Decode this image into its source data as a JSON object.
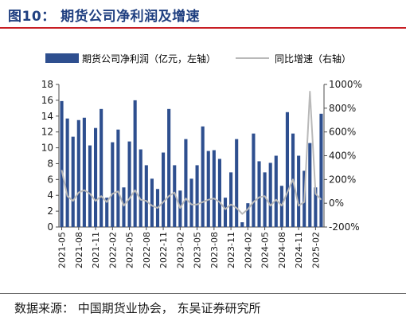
{
  "header": {
    "title": "图10： 期货公司净利润及增速"
  },
  "footer": {
    "source": "数据来源： 中国期货业协会， 东吴证券研究所"
  },
  "colors": {
    "bar": "#2e4f8f",
    "line": "#b9b9b9",
    "axis": "#4d4d4d",
    "title": "#1f3f80",
    "rule": "#c81e24"
  },
  "chart_data": {
    "type": "bar+line",
    "legend": {
      "position": "top",
      "bar_label": "期货公司净利润（亿元，左轴）",
      "line_label": "同比增速（右轴）"
    },
    "x": [
      "2021-05",
      "2021-06",
      "2021-07",
      "2021-08",
      "2021-09",
      "2021-10",
      "2021-11",
      "2021-12",
      "2022-01",
      "2022-02",
      "2022-03",
      "2022-04",
      "2022-05",
      "2022-06",
      "2022-07",
      "2022-08",
      "2022-09",
      "2022-10",
      "2022-11",
      "2022-12",
      "2023-01",
      "2023-02",
      "2023-03",
      "2023-04",
      "2023-05",
      "2023-06",
      "2023-07",
      "2023-08",
      "2023-09",
      "2023-10",
      "2023-11",
      "2023-12",
      "2024-01",
      "2024-02",
      "2024-03",
      "2024-04",
      "2024-05",
      "2024-06",
      "2024-07",
      "2024-08",
      "2024-09",
      "2024-10",
      "2024-11",
      "2024-12",
      "2025-01",
      "2025-02",
      "2025-03"
    ],
    "x_tick_labels": [
      "2021-05",
      "2021-08",
      "2021-11",
      "2022-02",
      "2022-05",
      "2022-08",
      "2022-11",
      "2023-02",
      "2023-05",
      "2023-08",
      "2023-11",
      "2024-02",
      "2024-05",
      "2024-08",
      "2024-11",
      "2025-02"
    ],
    "series": [
      {
        "name": "期货公司净利润（亿元，左轴）",
        "type": "bar",
        "axis": "left",
        "values": [
          15.9,
          13.7,
          11.4,
          13.5,
          13.8,
          10.3,
          12.5,
          14.9,
          3.7,
          10.7,
          12.3,
          5.0,
          10.8,
          16.0,
          9.8,
          7.8,
          6.1,
          4.8,
          9.4,
          14.9,
          7.8,
          4.6,
          11.1,
          6.1,
          7.8,
          12.7,
          9.6,
          9.7,
          8.6,
          3.7,
          6.9,
          11.1,
          0.6,
          3.0,
          11.8,
          8.3,
          6.9,
          8.1,
          9.0,
          5.2,
          14.5,
          11.8,
          9.0,
          7.1,
          10.6,
          5.0,
          14.3
        ]
      },
      {
        "name": "同比增速（右轴）",
        "type": "line",
        "axis": "right",
        "values": [
          280,
          60,
          20,
          90,
          110,
          80,
          20,
          60,
          10,
          80,
          100,
          -20,
          40,
          110,
          30,
          20,
          -20,
          -40,
          10,
          60,
          90,
          -40,
          40,
          -10,
          -10,
          10,
          30,
          40,
          10,
          -50,
          -10,
          -40,
          -90,
          -50,
          10,
          50,
          60,
          -20,
          30,
          -20,
          90,
          200,
          -20,
          10,
          940,
          80,
          30
        ]
      }
    ],
    "y_left": {
      "lim": [
        0,
        18
      ],
      "ticks": [
        0,
        2,
        4,
        6,
        8,
        10,
        12,
        14,
        16,
        18
      ]
    },
    "y_right": {
      "lim": [
        -200,
        1000
      ],
      "ticks": [
        "-200%",
        "0%",
        "200%",
        "400%",
        "600%",
        "800%",
        "1000%"
      ]
    }
  }
}
